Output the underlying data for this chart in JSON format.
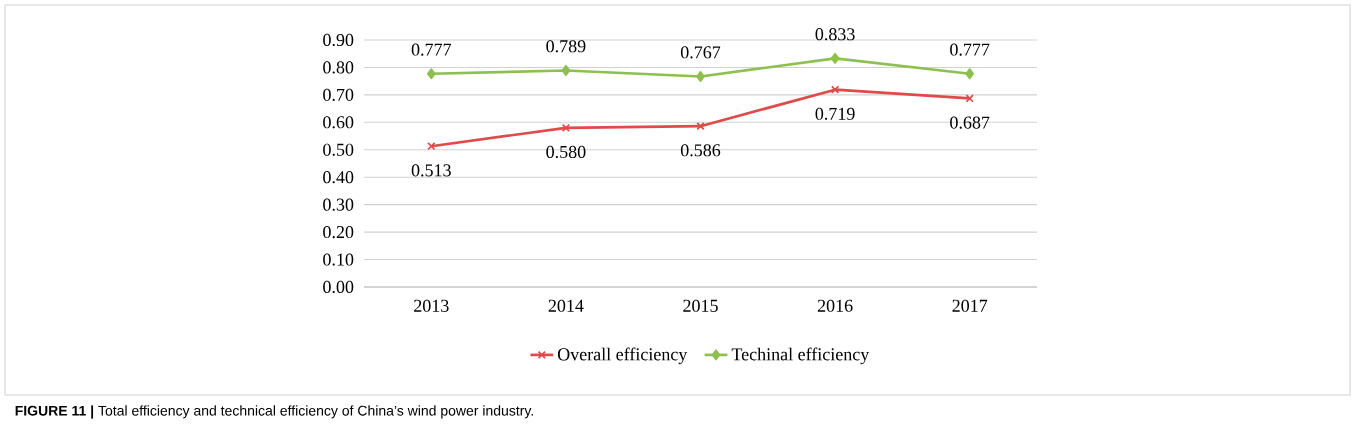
{
  "chart_data": {
    "type": "line",
    "categories": [
      "2013",
      "2014",
      "2015",
      "2016",
      "2017"
    ],
    "series": [
      {
        "name": "Overall efficiency",
        "color": "#e04a4a",
        "marker": "cross",
        "values": [
          0.513,
          0.58,
          0.586,
          0.719,
          0.687
        ],
        "value_labels": [
          "0.513",
          "0.580",
          "0.586",
          "0.719",
          "0.687"
        ]
      },
      {
        "name": "Techinal efficiency",
        "color": "#8dc04f",
        "marker": "diamond",
        "values": [
          0.777,
          0.789,
          0.767,
          0.833,
          0.777
        ],
        "value_labels": [
          "0.777",
          "0.789",
          "0.767",
          "0.833",
          "0.777"
        ]
      }
    ],
    "ylim": [
      0,
      0.9
    ],
    "yticks": [
      {
        "value": 0,
        "label": "0.00"
      },
      {
        "value": 0.1,
        "label": "0.10"
      },
      {
        "value": 0.2,
        "label": "0.20"
      },
      {
        "value": 0.3,
        "label": "0.30"
      },
      {
        "value": 0.4,
        "label": "0.40"
      },
      {
        "value": 0.5,
        "label": "0.50"
      },
      {
        "value": 0.6,
        "label": "0.60"
      },
      {
        "value": 0.7,
        "label": "0.70"
      },
      {
        "value": 0.8,
        "label": "0.80"
      },
      {
        "value": 0.9,
        "label": "0.90"
      }
    ],
    "grid": "y",
    "legend": "bottom",
    "annotations": [
      "**FIGURE 11 |** Total efficiency and technical efficiency of China’s wind power industry."
    ]
  }
}
